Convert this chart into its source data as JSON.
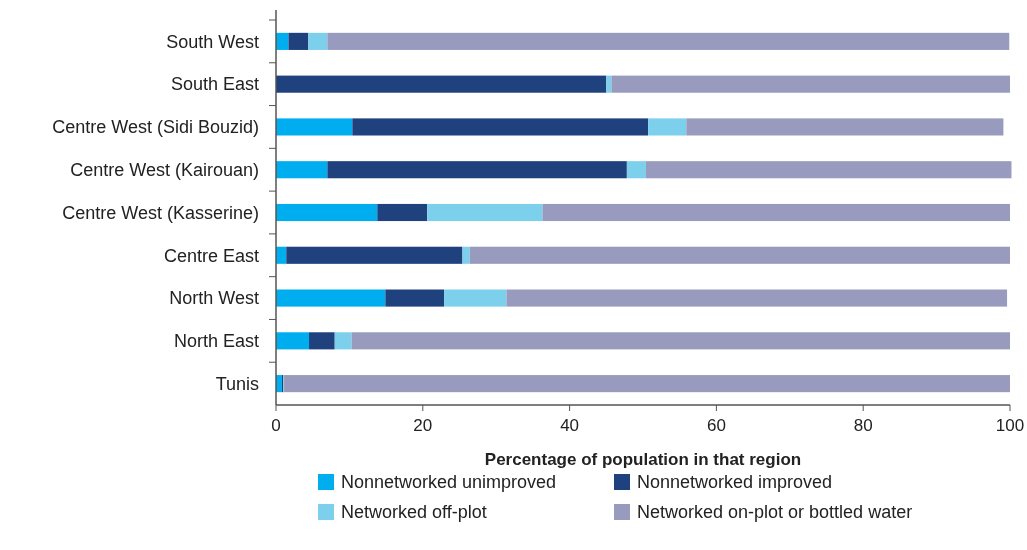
{
  "chart_data": {
    "type": "bar",
    "orientation": "horizontal",
    "stacked": true,
    "xlabel": "Percentage of population in that region",
    "categories": [
      "South West",
      "South East",
      "Centre West (Sidi Bouzid)",
      "Centre West (Kairouan)",
      "Centre West (Kasserine)",
      "Centre East",
      "North West",
      "North East",
      "Tunis"
    ],
    "series": [
      {
        "name": "Nonnetworked unimproved",
        "color": "#00aeef",
        "values": [
          1.7,
          0,
          10.4,
          7.0,
          13.8,
          1.4,
          14.9,
          4.5,
          0.8
        ]
      },
      {
        "name": "Nonnetworked improved",
        "color": "#1f417d",
        "values": [
          2.7,
          45.0,
          40.3,
          40.8,
          6.8,
          24.0,
          8.0,
          3.5,
          0.2
        ]
      },
      {
        "name": "Networked off-plot",
        "color": "#7dd0ec",
        "values": [
          2.6,
          0.7,
          5.2,
          2.6,
          15.7,
          1.0,
          8.5,
          2.3,
          0.1
        ]
      },
      {
        "name": "Networked on-plot or bottled water",
        "color": "#989bbd",
        "values": [
          92.9,
          54.3,
          43.2,
          49.8,
          63.7,
          73.6,
          68.2,
          89.7,
          98.9
        ]
      }
    ],
    "xlim": [
      0,
      100
    ],
    "xticks": [
      0,
      20,
      40,
      60,
      80,
      100
    ],
    "grid": false,
    "legend": "bottom"
  }
}
